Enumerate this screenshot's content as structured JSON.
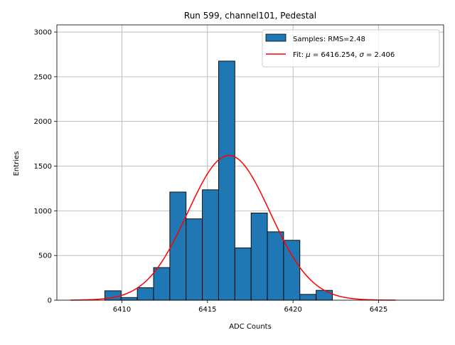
{
  "chart_data": {
    "type": "bar",
    "title": "Run 599, channel101, Pedestal",
    "xlabel": "ADC Counts",
    "ylabel": "Entries",
    "xlim": [
      6406.2,
      6428.8
    ],
    "ylim": [
      0,
      3080
    ],
    "grid": true,
    "legend_position": "top-right",
    "x_ticks": [
      6410,
      6415,
      6420,
      6425
    ],
    "x_tick_labels": [
      "6410",
      "6415",
      "6420",
      "6425"
    ],
    "y_ticks": [
      0,
      500,
      1000,
      1500,
      2000,
      2500,
      3000
    ],
    "y_tick_labels": [
      "0",
      "500",
      "1000",
      "1500",
      "2000",
      "2500",
      "3000"
    ],
    "histogram": {
      "name": "Samples: RMS=2.48",
      "color": "#1f77b4",
      "edgecolor": "#000000",
      "bins": [
        {
          "x0": 6409.0,
          "x1": 6409.95,
          "count": 105
        },
        {
          "x0": 6409.95,
          "x1": 6410.9,
          "count": 30
        },
        {
          "x0": 6410.9,
          "x1": 6411.85,
          "count": 140
        },
        {
          "x0": 6411.85,
          "x1": 6412.8,
          "count": 365
        },
        {
          "x0": 6412.8,
          "x1": 6413.75,
          "count": 1210
        },
        {
          "x0": 6413.75,
          "x1": 6414.7,
          "count": 910
        },
        {
          "x0": 6414.7,
          "x1": 6415.65,
          "count": 1235
        },
        {
          "x0": 6415.65,
          "x1": 6416.6,
          "count": 2675
        },
        {
          "x0": 6416.6,
          "x1": 6417.55,
          "count": 585
        },
        {
          "x0": 6417.55,
          "x1": 6418.5,
          "count": 975
        },
        {
          "x0": 6418.5,
          "x1": 6419.45,
          "count": 765
        },
        {
          "x0": 6419.45,
          "x1": 6420.4,
          "count": 670
        },
        {
          "x0": 6420.4,
          "x1": 6421.35,
          "count": 65
        },
        {
          "x0": 6421.35,
          "x1": 6422.3,
          "count": 110
        }
      ]
    },
    "fit": {
      "name": "Fit: μ = 6416.254, σ = 2.406",
      "name_parts": {
        "prefix": "Fit: ",
        "mu_symbol": "μ",
        "mu_text": " = 6416.254, ",
        "sigma_symbol": "σ",
        "sigma_text": " = 2.406"
      },
      "color": "#ff0000",
      "mu": 6416.254,
      "sigma": 2.406,
      "amplitude": 1620,
      "x_range": [
        6407.0,
        6426.0
      ]
    }
  }
}
